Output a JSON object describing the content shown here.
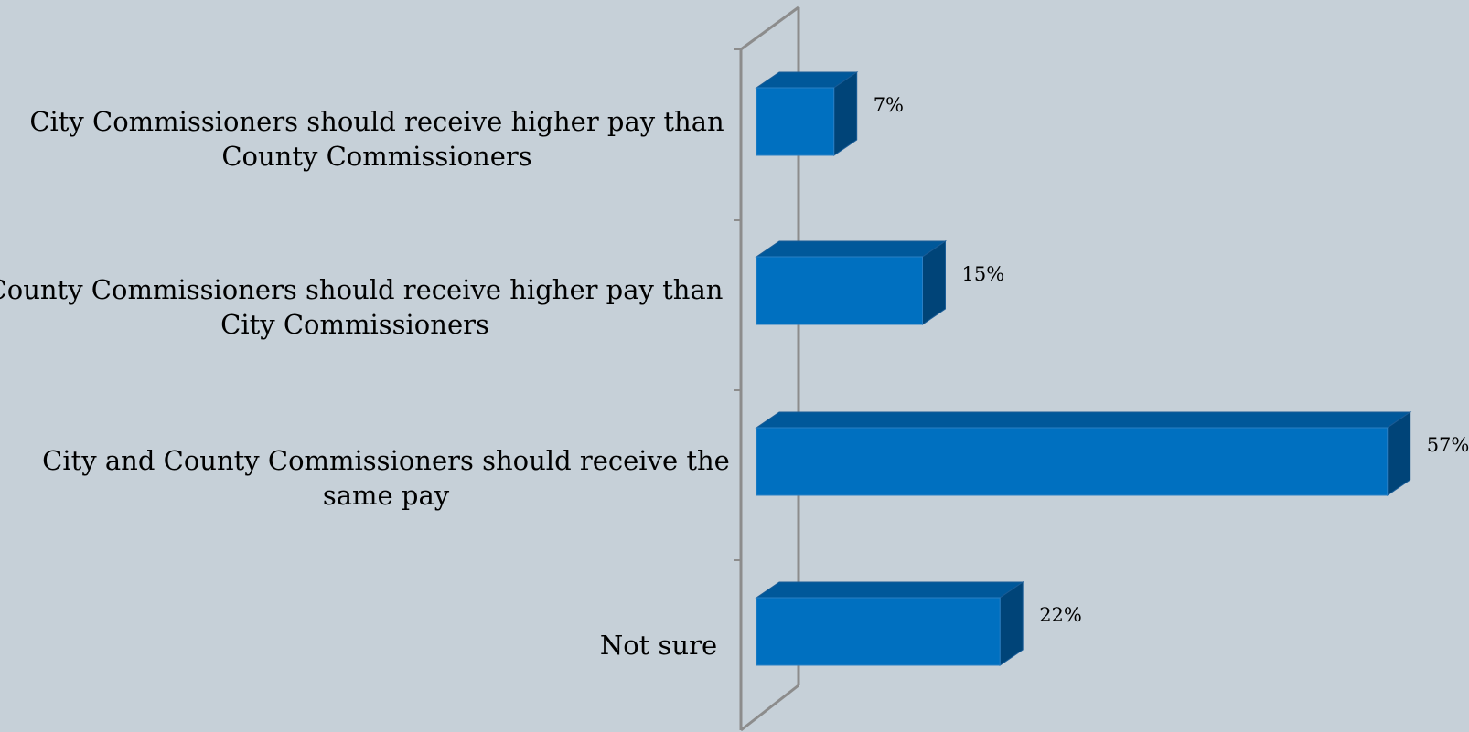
{
  "chart_data": {
    "type": "bar",
    "orientation": "horizontal",
    "style": "3d",
    "categories": [
      [
        "City Commissioners should receive higher pay than",
        "County Commissioners"
      ],
      [
        "County Commissioners should receive higher pay than",
        "City Commissioners"
      ],
      [
        "City and County Commissioners should receive the",
        "same pay"
      ],
      [
        "Not sure"
      ]
    ],
    "values": [
      7,
      15,
      57,
      22
    ],
    "value_labels": [
      "7%",
      "15%",
      "57%",
      "22%"
    ],
    "xlim": [
      0,
      57
    ],
    "grid": false,
    "legend": "none",
    "colors": {
      "background": "#c6d0d8",
      "bar_front": "#0070c0",
      "bar_top": "#00589a",
      "bar_side": "#004478",
      "axis": "#8c8c8c"
    }
  }
}
